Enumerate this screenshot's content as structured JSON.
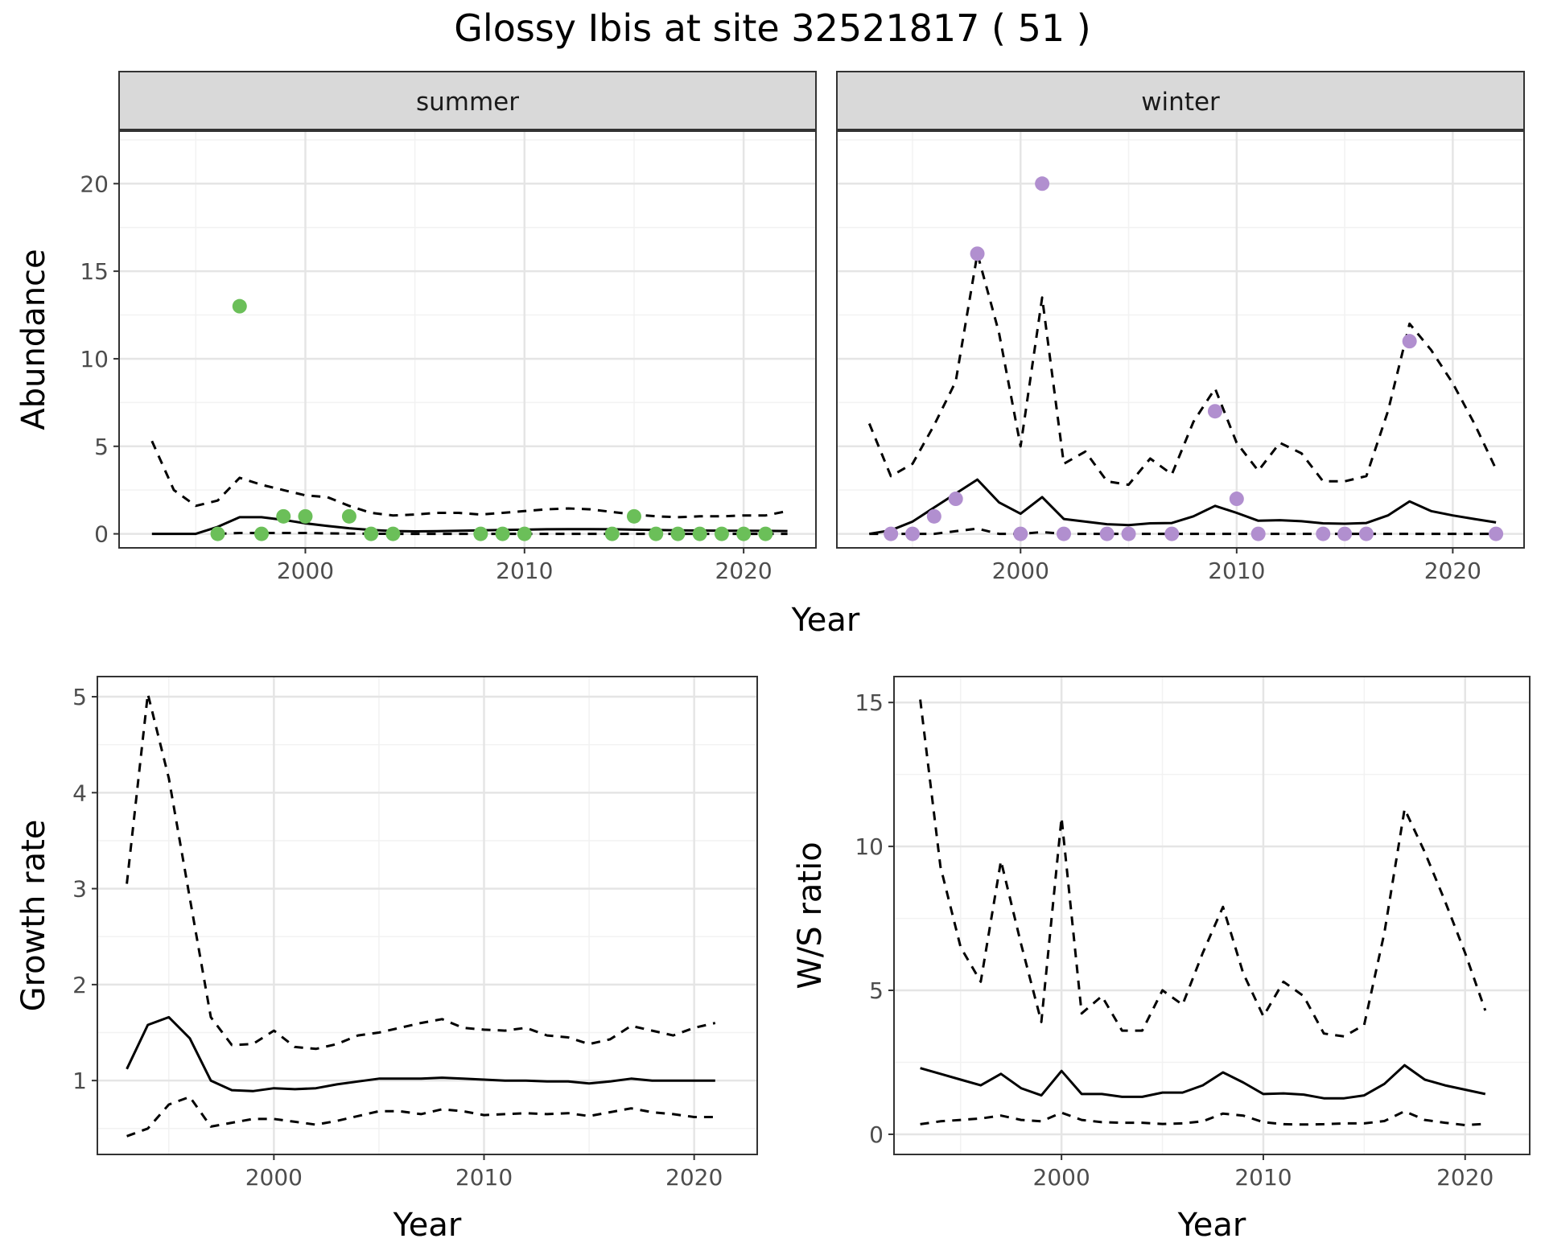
{
  "title": "Glossy Ibis at site 32521817 ( 51 )",
  "colors": {
    "summer_points": "#6BBF59",
    "winter_points": "#B18FCF",
    "line": "#000000",
    "strip_bg": "#D9D9D9",
    "grid_major": "#E5E5E5",
    "grid_minor": "#F2F2F2"
  },
  "chart_data": [
    {
      "id": "abundance",
      "type": "line",
      "ylabel": "Abundance",
      "xlabel": "Year",
      "xlim": [
        1991.5,
        2023.3
      ],
      "ylim": [
        -0.8,
        23.0
      ],
      "xticks": [
        2000,
        2010,
        2020
      ],
      "yticks": [
        0,
        5,
        10,
        15,
        20
      ],
      "grid": true,
      "facets": [
        {
          "strip": "summer",
          "x": [
            1993,
            1994,
            1995,
            1996,
            1997,
            1998,
            1999,
            2000,
            2001,
            2002,
            2003,
            2004,
            2005,
            2006,
            2007,
            2008,
            2009,
            2010,
            2011,
            2012,
            2013,
            2014,
            2015,
            2016,
            2017,
            2018,
            2019,
            2020,
            2021,
            2022
          ],
          "fit": [
            0,
            0,
            0,
            0.4,
            0.95,
            0.95,
            0.8,
            0.6,
            0.45,
            0.32,
            0.22,
            0.16,
            0.14,
            0.15,
            0.18,
            0.2,
            0.22,
            0.24,
            0.26,
            0.27,
            0.27,
            0.26,
            0.24,
            0.22,
            0.2,
            0.19,
            0.18,
            0.18,
            0.17,
            0.16
          ],
          "upper": [
            5.3,
            2.5,
            1.6,
            1.9,
            3.2,
            2.8,
            2.5,
            2.2,
            2.1,
            1.6,
            1.2,
            1.05,
            1.1,
            1.2,
            1.2,
            1.1,
            1.2,
            1.3,
            1.4,
            1.45,
            1.4,
            1.25,
            1.1,
            1.0,
            0.95,
            1.0,
            1.0,
            1.05,
            1.05,
            1.3
          ],
          "lower": [
            null,
            null,
            null,
            0,
            0.05,
            0.05,
            0.05,
            0.05,
            0.03,
            0.02,
            0.01,
            0,
            0,
            0,
            0,
            0,
            0,
            0,
            0,
            0,
            0,
            0,
            0,
            0,
            0,
            0,
            0,
            0,
            0,
            0
          ],
          "points": {
            "x": [
              1996,
              1997,
              1998,
              1999,
              2000,
              2002,
              2003,
              2004,
              2008,
              2009,
              2010,
              2014,
              2015,
              2016,
              2017,
              2018,
              2019,
              2020,
              2021
            ],
            "y": [
              0,
              13,
              0,
              1,
              1,
              1,
              0,
              0,
              0,
              0,
              0,
              0,
              1,
              0,
              0,
              0,
              0,
              0,
              0
            ]
          }
        },
        {
          "strip": "winter",
          "x": [
            1993,
            1994,
            1995,
            1996,
            1997,
            1998,
            1999,
            2000,
            2001,
            2002,
            2003,
            2004,
            2005,
            2006,
            2007,
            2008,
            2009,
            2010,
            2011,
            2012,
            2013,
            2014,
            2015,
            2016,
            2017,
            2018,
            2019,
            2020,
            2021,
            2022
          ],
          "fit": [
            0,
            0.2,
            0.7,
            1.5,
            2.3,
            3.1,
            1.8,
            1.15,
            2.1,
            0.85,
            0.7,
            0.55,
            0.5,
            0.6,
            0.62,
            1.0,
            1.6,
            1.2,
            0.75,
            0.78,
            0.72,
            0.6,
            0.58,
            0.62,
            1.05,
            1.85,
            1.3,
            1.05,
            0.85,
            0.65
          ],
          "upper": [
            6.3,
            3.3,
            4.0,
            6.2,
            8.7,
            16.0,
            11.5,
            5.0,
            13.5,
            4.0,
            4.7,
            3.0,
            2.8,
            4.3,
            3.4,
            6.4,
            8.3,
            5.2,
            3.6,
            5.2,
            4.6,
            3.0,
            3.0,
            3.3,
            7.0,
            12.0,
            10.5,
            8.6,
            6.3,
            3.7
          ],
          "lower": [
            0,
            0,
            0,
            0,
            0.15,
            0.3,
            0,
            0,
            0.1,
            0,
            0,
            0,
            0,
            0,
            0,
            0,
            0,
            0,
            0,
            0,
            0,
            0,
            0,
            0,
            0,
            0,
            0,
            0,
            0,
            0
          ],
          "points": {
            "x": [
              1994,
              1995,
              1996,
              1997,
              1998,
              2000,
              2001,
              2002,
              2004,
              2005,
              2007,
              2009,
              2010,
              2011,
              2014,
              2015,
              2016,
              2018,
              2022
            ],
            "y": [
              0,
              0,
              1,
              2,
              16,
              0,
              20,
              0,
              0,
              0,
              0,
              7,
              2,
              0,
              0,
              0,
              0,
              11,
              0
            ]
          }
        }
      ]
    },
    {
      "id": "growth",
      "type": "line",
      "ylabel": "Growth rate",
      "xlabel": "Year",
      "xlim": [
        1991.6,
        2023.0
      ],
      "ylim": [
        0.23,
        5.21
      ],
      "xticks": [
        2000,
        2010,
        2020
      ],
      "yticks": [
        1,
        2,
        3,
        4,
        5
      ],
      "grid": true,
      "x": [
        1993,
        1994,
        1995,
        1996,
        1997,
        1998,
        1999,
        2000,
        2001,
        2002,
        2003,
        2004,
        2005,
        2006,
        2007,
        2008,
        2009,
        2010,
        2011,
        2012,
        2013,
        2014,
        2015,
        2016,
        2017,
        2018,
        2019,
        2020,
        2021
      ],
      "fit": [
        1.12,
        1.58,
        1.66,
        1.44,
        1.0,
        0.9,
        0.89,
        0.92,
        0.91,
        0.92,
        0.96,
        0.99,
        1.02,
        1.02,
        1.02,
        1.03,
        1.02,
        1.01,
        1.0,
        1.0,
        0.99,
        0.99,
        0.97,
        0.99,
        1.02,
        1.0,
        1.0,
        1.0,
        1.0
      ],
      "upper": [
        3.05,
        5.03,
        4.15,
        2.9,
        1.66,
        1.37,
        1.38,
        1.52,
        1.35,
        1.33,
        1.38,
        1.47,
        1.5,
        1.55,
        1.6,
        1.64,
        1.55,
        1.53,
        1.52,
        1.55,
        1.47,
        1.45,
        1.38,
        1.43,
        1.57,
        1.52,
        1.47,
        1.55,
        1.6
      ],
      "lower": [
        0.42,
        0.5,
        0.75,
        0.83,
        0.52,
        0.56,
        0.6,
        0.6,
        0.57,
        0.54,
        0.58,
        0.63,
        0.68,
        0.68,
        0.65,
        0.7,
        0.68,
        0.64,
        0.65,
        0.66,
        0.65,
        0.66,
        0.63,
        0.67,
        0.71,
        0.67,
        0.65,
        0.62,
        0.62
      ]
    },
    {
      "id": "ws_ratio",
      "type": "line",
      "ylabel": "W/S ratio",
      "xlabel": "Year",
      "xlim": [
        1991.7,
        2023.2
      ],
      "ylim": [
        -0.7,
        15.9
      ],
      "xticks": [
        2000,
        2010,
        2020
      ],
      "yticks": [
        0,
        5,
        10,
        15
      ],
      "grid": true,
      "x": [
        1993,
        1994,
        1995,
        1996,
        1997,
        1998,
        1999,
        2000,
        2001,
        2002,
        2003,
        2004,
        2005,
        2006,
        2007,
        2008,
        2009,
        2010,
        2011,
        2012,
        2013,
        2014,
        2015,
        2016,
        2017,
        2018,
        2019,
        2020,
        2021
      ],
      "fit": [
        2.3,
        2.1,
        1.9,
        1.7,
        2.1,
        1.6,
        1.35,
        2.2,
        1.4,
        1.4,
        1.3,
        1.3,
        1.45,
        1.45,
        1.7,
        2.15,
        1.8,
        1.4,
        1.42,
        1.38,
        1.25,
        1.25,
        1.35,
        1.75,
        2.4,
        1.9,
        1.7,
        1.55,
        1.4
      ],
      "upper": [
        15.1,
        9.3,
        6.5,
        5.3,
        9.5,
        6.6,
        3.9,
        11.0,
        4.2,
        4.8,
        3.6,
        3.6,
        5.0,
        4.5,
        6.3,
        7.9,
        5.6,
        4.1,
        5.3,
        4.8,
        3.5,
        3.4,
        3.8,
        7.0,
        11.3,
        9.8,
        8.1,
        6.3,
        4.3
      ],
      "lower": [
        0.35,
        0.45,
        0.5,
        0.55,
        0.65,
        0.5,
        0.45,
        0.75,
        0.5,
        0.42,
        0.4,
        0.4,
        0.36,
        0.38,
        0.45,
        0.72,
        0.65,
        0.42,
        0.35,
        0.34,
        0.35,
        0.38,
        0.38,
        0.46,
        0.8,
        0.5,
        0.4,
        0.32,
        0.36
      ]
    }
  ]
}
